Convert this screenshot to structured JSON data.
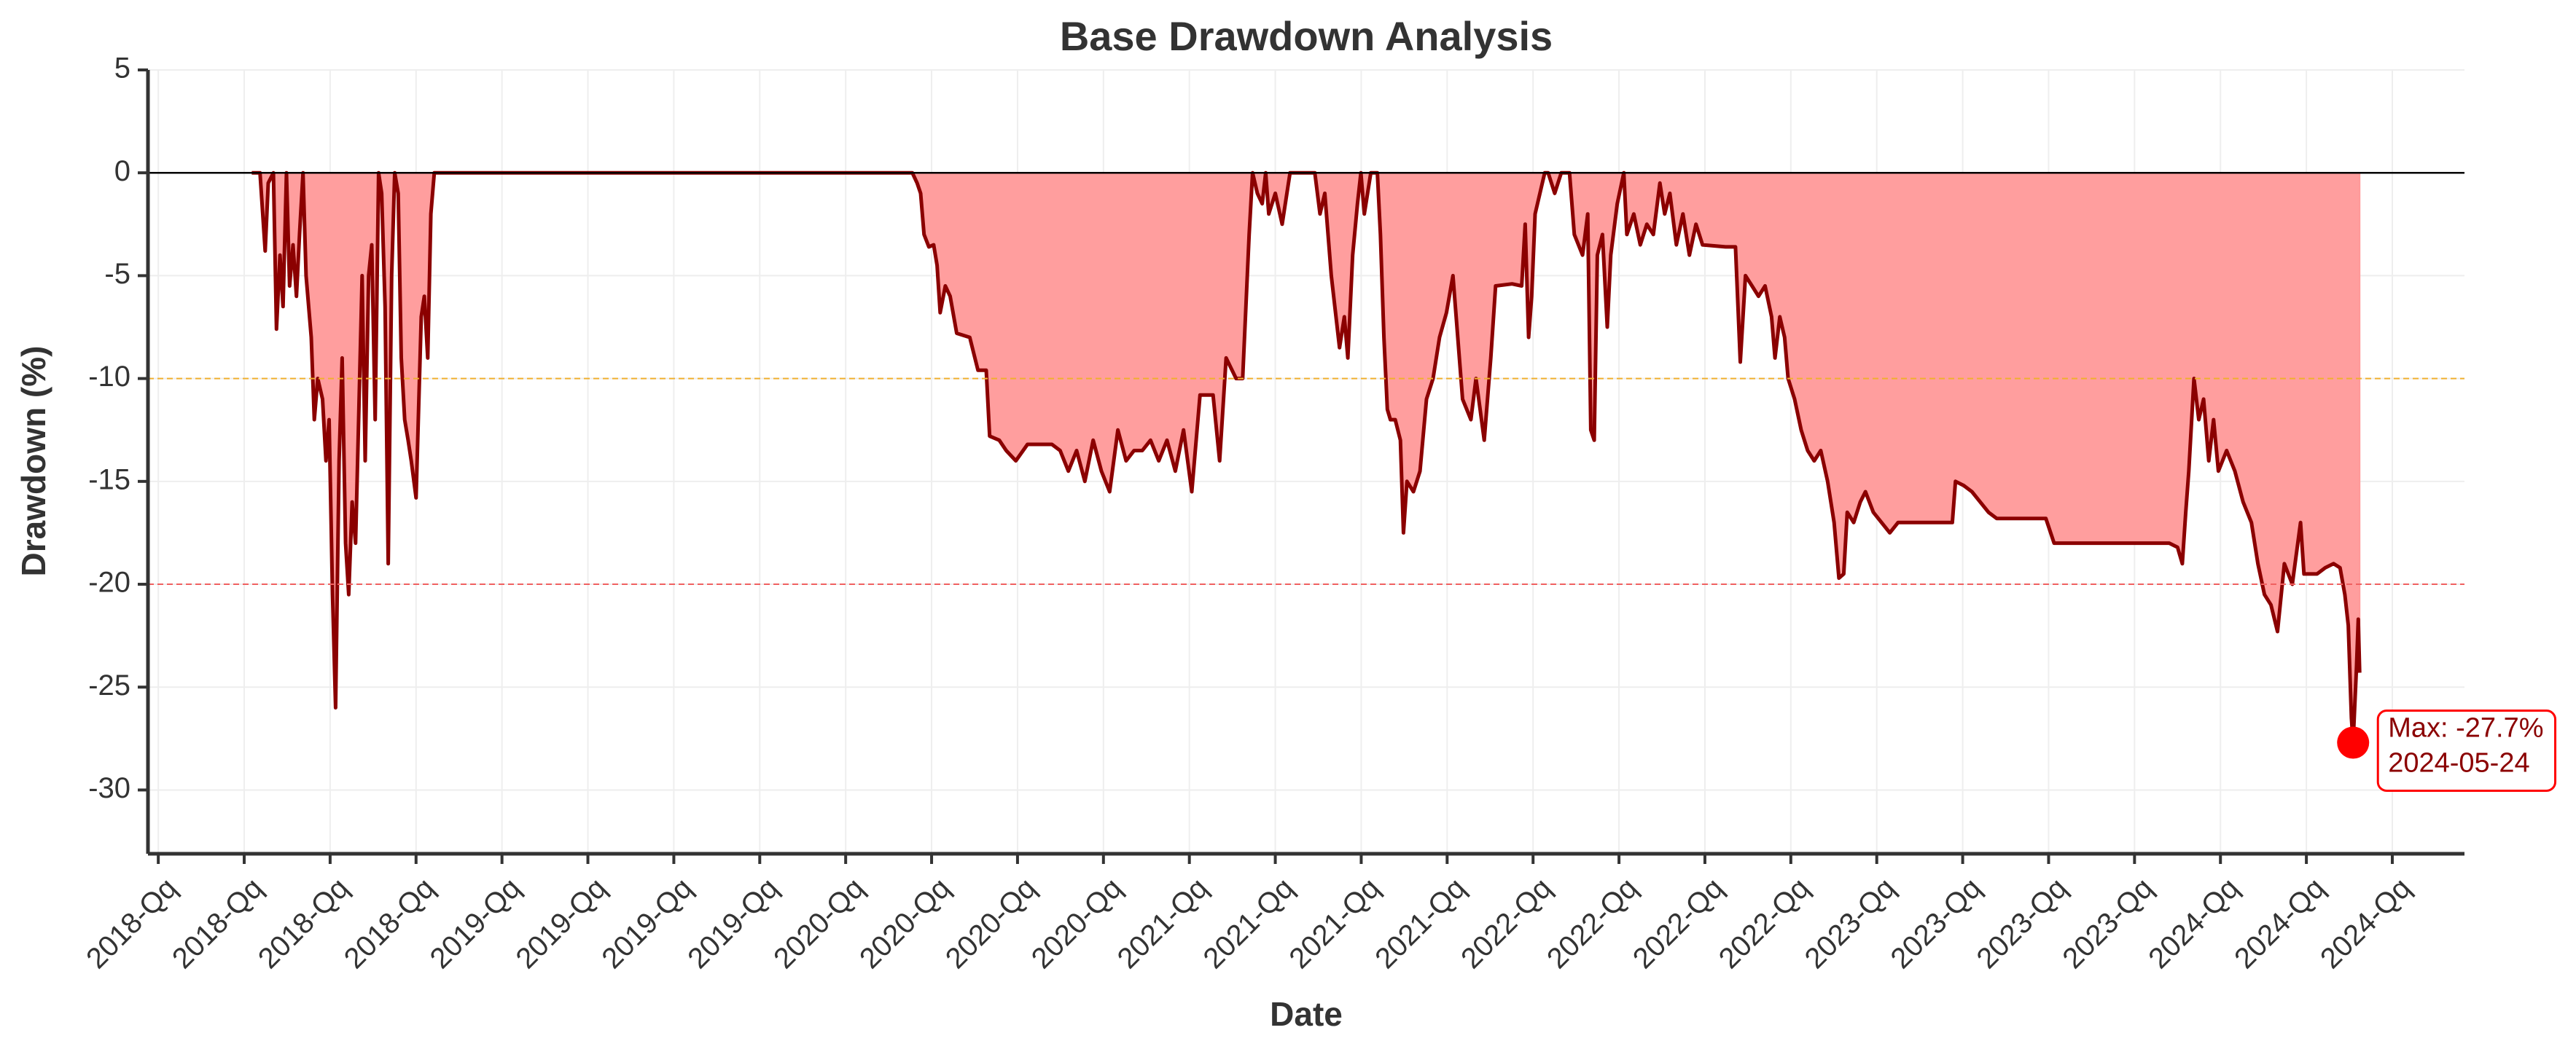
{
  "chart_data": {
    "type": "area",
    "title": "Base Drawdown Analysis",
    "x_label": "Date",
    "y_label": "Drawdown (%)",
    "series": [
      {
        "name": "Drawdown",
        "color": "#8b0000",
        "fill": "#ff9999",
        "x": [
          2018.272,
          2018.296,
          2018.311,
          2018.32,
          2018.335,
          2018.344,
          2018.354,
          2018.363,
          2018.373,
          2018.382,
          2018.392,
          2018.402,
          2018.411,
          2018.421,
          2018.43,
          2018.445,
          2018.454,
          2018.464,
          2018.478,
          2018.488,
          2018.497,
          2018.507,
          2018.516,
          2018.526,
          2018.535,
          2018.545,
          2018.554,
          2018.564,
          2018.574,
          2018.583,
          2018.593,
          2018.602,
          2018.612,
          2018.621,
          2018.631,
          2018.641,
          2018.65,
          2018.66,
          2018.669,
          2018.679,
          2018.688,
          2018.698,
          2018.707,
          2018.717,
          2018.727,
          2018.736,
          2018.75,
          2018.765,
          2018.774,
          2018.784,
          2018.793,
          2018.803,
          2018.813,
          2020.194,
          2020.208,
          2020.218,
          2020.228,
          2020.242,
          2020.256,
          2020.266,
          2020.275,
          2020.29,
          2020.304,
          2020.323,
          2020.361,
          2020.385,
          2020.409,
          2020.419,
          2020.447,
          2020.467,
          2020.495,
          2020.529,
          2020.6,
          2020.624,
          2020.648,
          2020.672,
          2020.696,
          2020.72,
          2020.744,
          2020.768,
          2020.792,
          2020.816,
          2020.839,
          2020.863,
          2020.887,
          2020.911,
          2020.935,
          2020.959,
          2020.983,
          2021.007,
          2021.031,
          2021.069,
          2021.088,
          2021.107,
          2021.136,
          2021.155,
          2021.174,
          2021.184,
          2021.198,
          2021.212,
          2021.222,
          2021.231,
          2021.25,
          2021.27,
          2021.293,
          2021.365,
          2021.38,
          2021.394,
          2021.413,
          2021.437,
          2021.451,
          2021.461,
          2021.475,
          2021.489,
          2021.499,
          2021.509,
          2021.528,
          2021.547,
          2021.556,
          2021.566,
          2021.576,
          2021.585,
          2021.599,
          2021.614,
          2021.623,
          2021.633,
          2021.652,
          2021.671,
          2021.69,
          2021.709,
          2021.728,
          2021.748,
          2021.767,
          2021.781,
          2021.795,
          2021.819,
          2021.834,
          2021.858,
          2021.877,
          2021.891,
          2021.939,
          2021.967,
          2021.977,
          2021.987,
          2021.996,
          2022.006,
          2022.02,
          2022.034,
          2022.044,
          2022.063,
          2022.082,
          2022.106,
          2022.12,
          2022.144,
          2022.159,
          2022.168,
          2022.178,
          2022.187,
          2022.202,
          2022.216,
          2022.226,
          2022.245,
          2022.264,
          2022.273,
          2022.293,
          2022.312,
          2022.331,
          2022.35,
          2022.369,
          2022.383,
          2022.398,
          2022.417,
          2022.436,
          2022.455,
          2022.474,
          2022.493,
          2022.56,
          2022.589,
          2022.603,
          2022.618,
          2022.637,
          2022.656,
          2022.675,
          2022.694,
          2022.704,
          2022.718,
          2022.732,
          2022.742,
          2022.761,
          2022.78,
          2022.799,
          2022.818,
          2022.837,
          2022.857,
          2022.876,
          2022.89,
          2022.904,
          2022.914,
          2022.933,
          2022.952,
          2022.967,
          2022.99,
          2023.014,
          2023.038,
          2023.062,
          2023.158,
          2023.22,
          2023.229,
          2023.253,
          2023.277,
          2023.301,
          2023.325,
          2023.349,
          2023.492,
          2023.516,
          2023.851,
          2023.875,
          2023.889,
          2023.899,
          2023.908,
          2023.923,
          2023.937,
          2023.951,
          2023.966,
          2023.98,
          2023.994,
          2024.018,
          2024.042,
          2024.066,
          2024.09,
          2024.109,
          2024.128,
          2024.147,
          2024.166,
          2024.186,
          2024.209,
          2024.233,
          2024.243,
          2024.281,
          2024.305,
          2024.329,
          2024.348,
          2024.362,
          2024.372,
          2024.381,
          2024.386,
          2024.396,
          2024.401,
          2024.405
        ],
        "values": [
          0,
          0,
          -3.8,
          -0.5,
          0,
          -7.6,
          -4,
          -6.5,
          0,
          -5.5,
          -3.5,
          -6,
          -3,
          0,
          -5,
          -8,
          -12,
          -10,
          -11,
          -14,
          -12,
          -20.5,
          -26,
          -14,
          -9,
          -18,
          -20.5,
          -16,
          -18,
          -12,
          -5,
          -14,
          -5,
          -3.5,
          -12,
          0,
          -1,
          -6.5,
          -19,
          -5,
          0,
          -1,
          -9,
          -12,
          -13,
          -14,
          -15.8,
          -7,
          -6,
          -9,
          -2,
          0,
          0,
          0,
          -0.5,
          -1,
          -3,
          -3.6,
          -3.5,
          -4.5,
          -6.8,
          -5.5,
          -6,
          -7.8,
          -8,
          -9.6,
          -9.6,
          -12.8,
          -13,
          -13.5,
          -14,
          -13.2,
          -13.2,
          -13.5,
          -14.5,
          -13.5,
          -15,
          -13,
          -14.5,
          -15.5,
          -12.5,
          -14,
          -13.5,
          -13.5,
          -13,
          -14,
          -13,
          -14.5,
          -12.5,
          -15.5,
          -10.8,
          -10.8,
          -14,
          -9,
          -10,
          -10,
          -3,
          0,
          -1,
          -1.5,
          0,
          -2,
          -1,
          -2.5,
          0,
          0,
          -2,
          -1,
          -5,
          -8.5,
          -7,
          -9,
          -4,
          -1.5,
          0,
          -2,
          0,
          0,
          -3,
          -8,
          -11.5,
          -12,
          -12,
          -13,
          -17.5,
          -15,
          -15.5,
          -14.5,
          -11,
          -10,
          -8,
          -6.8,
          -5,
          -8,
          -11,
          -12,
          -10,
          -13,
          -9,
          -5.5,
          -5.4,
          -5.5,
          -2.5,
          -8,
          -6,
          -2,
          -1,
          0,
          0,
          -1,
          0,
          0,
          -3,
          -4,
          -2,
          -12.5,
          -13,
          -4,
          -3,
          -7.5,
          -4,
          -1.5,
          0,
          -3,
          -2,
          -3.5,
          -2.5,
          -3,
          -0.5,
          -2,
          -1,
          -3.5,
          -2,
          -4,
          -2.5,
          -3.5,
          -3.6,
          -3.6,
          -9.2,
          -5,
          -5.5,
          -6,
          -5.5,
          -7,
          -9,
          -7,
          -8,
          -10,
          -11,
          -12.5,
          -13.5,
          -14,
          -13.5,
          -15,
          -17,
          -19.7,
          -19.5,
          -16.5,
          -17,
          -16,
          -15.5,
          -16.5,
          -17,
          -17.5,
          -17,
          -17,
          -17,
          -15,
          -15.2,
          -15.5,
          -16,
          -16.5,
          -16.8,
          -16.8,
          -18,
          -18,
          -18.2,
          -19,
          -16.5,
          -14.5,
          -10,
          -12,
          -11,
          -14,
          -12,
          -14.5,
          -13.5,
          -14.5,
          -16,
          -17,
          -19,
          -20.5,
          -21,
          -22.3,
          -19,
          -20,
          -17,
          -19.5,
          -19.5,
          -19.2,
          -19,
          -19.2,
          -20.5,
          -22,
          -26.5,
          -27.7,
          -24,
          -21.7,
          -24.3
        ]
      }
    ],
    "max_point": {
      "x": 2024.386,
      "y": -27.7,
      "label": "Max: -27.7%",
      "date": "2024-05-24",
      "color": "#ff0000"
    },
    "hlines": [
      {
        "value": 0,
        "color": "#000000",
        "dashed": false
      },
      {
        "value": -10,
        "color": "#f0b030",
        "dashed": true
      },
      {
        "value": -20,
        "color": "#f06060",
        "dashed": true
      }
    ],
    "xlim": [
      2017.97,
      2024.71
    ],
    "ylim": [
      -33.1,
      5
    ],
    "yticks": [
      -30,
      -25,
      -20,
      -15,
      -10,
      -5,
      0,
      5
    ],
    "xticks": [
      {
        "value": 2018.0,
        "label": "2018-Qq"
      },
      {
        "value": 2018.25,
        "label": "2018-Qq"
      },
      {
        "value": 2018.5,
        "label": "2018-Qq"
      },
      {
        "value": 2018.75,
        "label": "2018-Qq"
      },
      {
        "value": 2019.0,
        "label": "2019-Qq"
      },
      {
        "value": 2019.25,
        "label": "2019-Qq"
      },
      {
        "value": 2019.5,
        "label": "2019-Qq"
      },
      {
        "value": 2019.75,
        "label": "2019-Qq"
      },
      {
        "value": 2020.0,
        "label": "2020-Qq"
      },
      {
        "value": 2020.25,
        "label": "2020-Qq"
      },
      {
        "value": 2020.5,
        "label": "2020-Qq"
      },
      {
        "value": 2020.75,
        "label": "2020-Qq"
      },
      {
        "value": 2021.0,
        "label": "2021-Qq"
      },
      {
        "value": 2021.25,
        "label": "2021-Qq"
      },
      {
        "value": 2021.5,
        "label": "2021-Qq"
      },
      {
        "value": 2021.75,
        "label": "2021-Qq"
      },
      {
        "value": 2022.0,
        "label": "2022-Qq"
      },
      {
        "value": 2022.25,
        "label": "2022-Qq"
      },
      {
        "value": 2022.5,
        "label": "2022-Qq"
      },
      {
        "value": 2022.75,
        "label": "2022-Qq"
      },
      {
        "value": 2023.0,
        "label": "2023-Qq"
      },
      {
        "value": 2023.25,
        "label": "2023-Qq"
      },
      {
        "value": 2023.5,
        "label": "2023-Qq"
      },
      {
        "value": 2023.75,
        "label": "2023-Qq"
      },
      {
        "value": 2024.0,
        "label": "2024-Qq"
      },
      {
        "value": 2024.25,
        "label": "2024-Qq"
      },
      {
        "value": 2024.5,
        "label": "2024-Qq"
      }
    ],
    "grid": true
  }
}
